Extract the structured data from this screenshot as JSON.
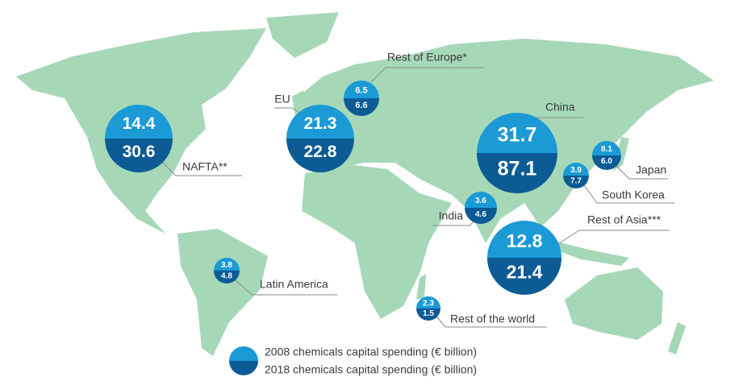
{
  "chart_data": {
    "type": "split-bubble-map",
    "categories": [
      "NAFTA**",
      "EU",
      "Rest of Europe*",
      "China",
      "Japan",
      "South Korea",
      "India",
      "Rest of Asia***",
      "Latin America",
      "Rest of the world"
    ],
    "series": [
      {
        "name": "2008 chemicals capital spending (€ billion)",
        "color": "#1b9ad6",
        "values": [
          14.4,
          21.3,
          6.5,
          31.7,
          8.1,
          3.9,
          3.6,
          12.8,
          3.8,
          2.3
        ]
      },
      {
        "name": "2018 chemicals capital spending (€ billion)",
        "color": "#0c5b95",
        "values": [
          30.6,
          22.8,
          6.6,
          87.1,
          6,
          7.7,
          4.6,
          21.4,
          4.8,
          1.5
        ],
        "value_labels": [
          "30.6",
          "22.8",
          "6.6",
          "87.1",
          "6.0",
          "7.7",
          "4.6",
          "21.4",
          "4.8",
          "1.5"
        ]
      }
    ]
  }
}
